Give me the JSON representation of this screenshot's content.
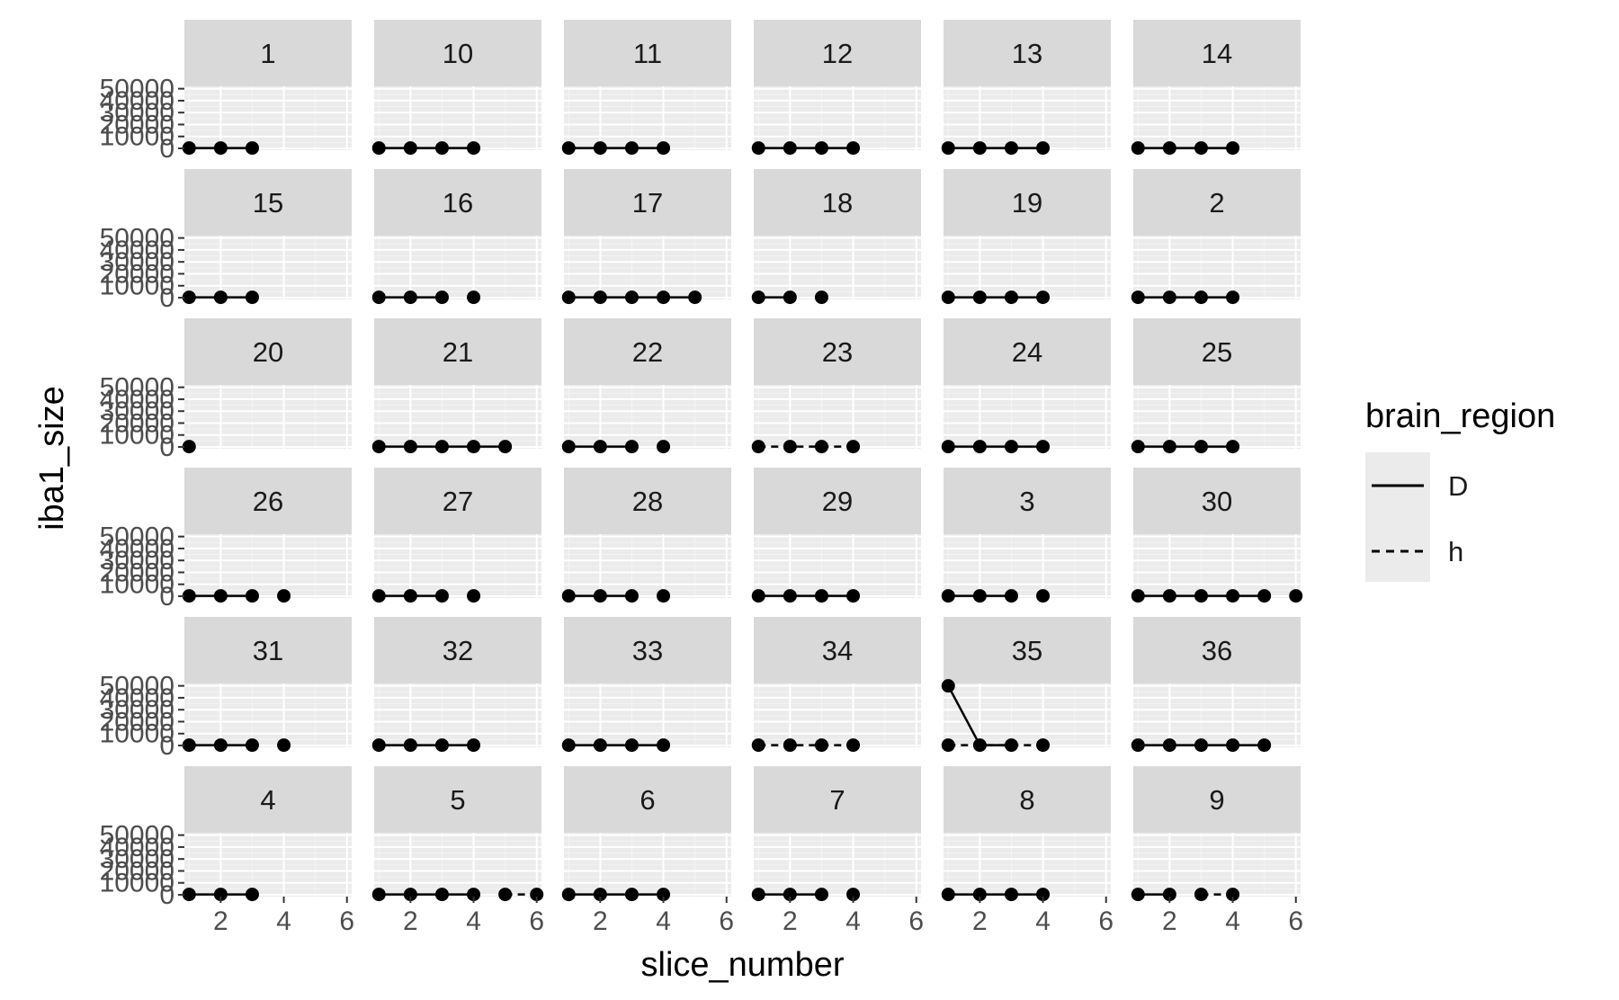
{
  "chart_data": {
    "type": "line",
    "facet_var": "animal",
    "xlabel": "slice_number",
    "ylabel": "iba1_size",
    "xlim": [
      0.85,
      6.15
    ],
    "ylim": [
      -1500,
      52000
    ],
    "x_ticks": [
      2,
      4,
      6
    ],
    "y_ticks": [
      0,
      10000,
      20000,
      30000,
      40000,
      50000
    ],
    "y_tick_labels": [
      "0",
      "10000",
      "20000",
      "30000",
      "40000",
      "50000"
    ],
    "legend": {
      "title": "brain_region",
      "position": "right",
      "entries": [
        {
          "label": "D",
          "linetype": "solid"
        },
        {
          "label": "h",
          "linetype": "dashed"
        }
      ]
    },
    "colors": {
      "panel_bg": "#ebebeb",
      "strip_bg": "#d9d9d9",
      "grid_major": "#ffffff",
      "data": "#000000"
    },
    "facets": [
      {
        "label": "1",
        "points": [
          {
            "x": 1,
            "y": 300,
            "region": "D"
          },
          {
            "x": 2,
            "y": 300,
            "region": "D"
          },
          {
            "x": 3,
            "y": 300,
            "region": "D"
          }
        ]
      },
      {
        "label": "10",
        "points": [
          {
            "x": 1,
            "y": 300,
            "region": "D"
          },
          {
            "x": 2,
            "y": 300,
            "region": "D"
          },
          {
            "x": 3,
            "y": 300,
            "region": "D"
          },
          {
            "x": 4,
            "y": 300,
            "region": "D"
          }
        ]
      },
      {
        "label": "11",
        "points": [
          {
            "x": 1,
            "y": 300,
            "region": "D"
          },
          {
            "x": 2,
            "y": 300,
            "region": "D"
          },
          {
            "x": 3,
            "y": 300,
            "region": "D"
          },
          {
            "x": 4,
            "y": 300,
            "region": "D"
          }
        ]
      },
      {
        "label": "12",
        "points": [
          {
            "x": 1,
            "y": 300,
            "region": "D"
          },
          {
            "x": 2,
            "y": 300,
            "region": "D"
          },
          {
            "x": 3,
            "y": 300,
            "region": "D"
          },
          {
            "x": 4,
            "y": 300,
            "region": "D"
          }
        ]
      },
      {
        "label": "13",
        "points": [
          {
            "x": 1,
            "y": 300,
            "region": "D"
          },
          {
            "x": 2,
            "y": 300,
            "region": "D"
          },
          {
            "x": 3,
            "y": 300,
            "region": "D"
          },
          {
            "x": 4,
            "y": 300,
            "region": "D"
          }
        ]
      },
      {
        "label": "14",
        "points": [
          {
            "x": 1,
            "y": 300,
            "region": "D"
          },
          {
            "x": 2,
            "y": 300,
            "region": "D"
          },
          {
            "x": 3,
            "y": 300,
            "region": "D"
          },
          {
            "x": 4,
            "y": 300,
            "region": "D"
          }
        ]
      },
      {
        "label": "15",
        "points": [
          {
            "x": 1,
            "y": 300,
            "region": "D"
          },
          {
            "x": 2,
            "y": 300,
            "region": "D"
          },
          {
            "x": 3,
            "y": 300,
            "region": "D"
          }
        ]
      },
      {
        "label": "16",
        "points": [
          {
            "x": 1,
            "y": 300,
            "region": "D"
          },
          {
            "x": 2,
            "y": 300,
            "region": "D"
          },
          {
            "x": 3,
            "y": 300,
            "region": "D"
          },
          {
            "x": 4,
            "y": 300,
            "region": "h"
          }
        ]
      },
      {
        "label": "17",
        "points": [
          {
            "x": 1,
            "y": 300,
            "region": "D"
          },
          {
            "x": 2,
            "y": 300,
            "region": "D"
          },
          {
            "x": 3,
            "y": 300,
            "region": "D"
          },
          {
            "x": 4,
            "y": 300,
            "region": "D"
          },
          {
            "x": 5,
            "y": 300,
            "region": "D"
          }
        ]
      },
      {
        "label": "18",
        "points": [
          {
            "x": 1,
            "y": 300,
            "region": "D"
          },
          {
            "x": 2,
            "y": 300,
            "region": "D"
          },
          {
            "x": 3,
            "y": 300,
            "region": "h"
          }
        ]
      },
      {
        "label": "19",
        "points": [
          {
            "x": 1,
            "y": 300,
            "region": "D"
          },
          {
            "x": 2,
            "y": 300,
            "region": "D"
          },
          {
            "x": 3,
            "y": 300,
            "region": "D"
          },
          {
            "x": 4,
            "y": 300,
            "region": "D"
          }
        ]
      },
      {
        "label": "2",
        "points": [
          {
            "x": 1,
            "y": 300,
            "region": "D"
          },
          {
            "x": 2,
            "y": 300,
            "region": "D"
          },
          {
            "x": 3,
            "y": 300,
            "region": "D"
          },
          {
            "x": 4,
            "y": 300,
            "region": "D"
          }
        ]
      },
      {
        "label": "20",
        "points": [
          {
            "x": 1,
            "y": 300,
            "region": "D"
          }
        ]
      },
      {
        "label": "21",
        "points": [
          {
            "x": 1,
            "y": 300,
            "region": "D"
          },
          {
            "x": 2,
            "y": 300,
            "region": "D"
          },
          {
            "x": 3,
            "y": 300,
            "region": "D"
          },
          {
            "x": 4,
            "y": 300,
            "region": "D"
          },
          {
            "x": 5,
            "y": 300,
            "region": "D"
          }
        ]
      },
      {
        "label": "22",
        "points": [
          {
            "x": 1,
            "y": 300,
            "region": "D"
          },
          {
            "x": 2,
            "y": 300,
            "region": "D"
          },
          {
            "x": 3,
            "y": 300,
            "region": "D"
          },
          {
            "x": 4,
            "y": 300,
            "region": "h"
          }
        ]
      },
      {
        "label": "23",
        "points": [
          {
            "x": 1,
            "y": 300,
            "region": "h"
          },
          {
            "x": 2,
            "y": 300,
            "region": "h"
          },
          {
            "x": 3,
            "y": 300,
            "region": "h"
          },
          {
            "x": 4,
            "y": 300,
            "region": "h"
          }
        ]
      },
      {
        "label": "24",
        "points": [
          {
            "x": 1,
            "y": 300,
            "region": "D"
          },
          {
            "x": 2,
            "y": 300,
            "region": "D"
          },
          {
            "x": 3,
            "y": 300,
            "region": "D"
          },
          {
            "x": 4,
            "y": 300,
            "region": "D"
          }
        ]
      },
      {
        "label": "25",
        "points": [
          {
            "x": 1,
            "y": 300,
            "region": "D"
          },
          {
            "x": 2,
            "y": 300,
            "region": "D"
          },
          {
            "x": 3,
            "y": 300,
            "region": "D"
          },
          {
            "x": 4,
            "y": 300,
            "region": "D"
          }
        ]
      },
      {
        "label": "26",
        "points": [
          {
            "x": 1,
            "y": 300,
            "region": "D"
          },
          {
            "x": 2,
            "y": 300,
            "region": "D"
          },
          {
            "x": 3,
            "y": 300,
            "region": "D"
          },
          {
            "x": 4,
            "y": 300,
            "region": "h"
          }
        ]
      },
      {
        "label": "27",
        "points": [
          {
            "x": 1,
            "y": 300,
            "region": "D"
          },
          {
            "x": 2,
            "y": 300,
            "region": "D"
          },
          {
            "x": 3,
            "y": 300,
            "region": "D"
          },
          {
            "x": 4,
            "y": 300,
            "region": "h"
          }
        ]
      },
      {
        "label": "28",
        "points": [
          {
            "x": 1,
            "y": 300,
            "region": "D"
          },
          {
            "x": 2,
            "y": 300,
            "region": "D"
          },
          {
            "x": 3,
            "y": 300,
            "region": "D"
          },
          {
            "x": 4,
            "y": 300,
            "region": "h"
          }
        ]
      },
      {
        "label": "29",
        "points": [
          {
            "x": 1,
            "y": 300,
            "region": "D"
          },
          {
            "x": 2,
            "y": 300,
            "region": "D"
          },
          {
            "x": 3,
            "y": 300,
            "region": "D"
          },
          {
            "x": 4,
            "y": 300,
            "region": "D"
          }
        ]
      },
      {
        "label": "3",
        "points": [
          {
            "x": 1,
            "y": 300,
            "region": "D"
          },
          {
            "x": 2,
            "y": 300,
            "region": "D"
          },
          {
            "x": 3,
            "y": 300,
            "region": "D"
          },
          {
            "x": 4,
            "y": 300,
            "region": "h"
          }
        ]
      },
      {
        "label": "30",
        "points": [
          {
            "x": 1,
            "y": 300,
            "region": "D"
          },
          {
            "x": 2,
            "y": 300,
            "region": "D"
          },
          {
            "x": 3,
            "y": 300,
            "region": "D"
          },
          {
            "x": 4,
            "y": 300,
            "region": "D"
          },
          {
            "x": 5,
            "y": 300,
            "region": "D"
          },
          {
            "x": 6,
            "y": 300,
            "region": "h"
          }
        ]
      },
      {
        "label": "31",
        "points": [
          {
            "x": 1,
            "y": 300,
            "region": "D"
          },
          {
            "x": 2,
            "y": 300,
            "region": "D"
          },
          {
            "x": 3,
            "y": 300,
            "region": "D"
          },
          {
            "x": 4,
            "y": 300,
            "region": "h"
          }
        ]
      },
      {
        "label": "32",
        "points": [
          {
            "x": 1,
            "y": 300,
            "region": "D"
          },
          {
            "x": 2,
            "y": 300,
            "region": "D"
          },
          {
            "x": 3,
            "y": 300,
            "region": "D"
          },
          {
            "x": 4,
            "y": 300,
            "region": "D"
          }
        ]
      },
      {
        "label": "33",
        "points": [
          {
            "x": 1,
            "y": 300,
            "region": "D"
          },
          {
            "x": 2,
            "y": 300,
            "region": "D"
          },
          {
            "x": 3,
            "y": 300,
            "region": "D"
          },
          {
            "x": 4,
            "y": 300,
            "region": "D"
          }
        ]
      },
      {
        "label": "34",
        "points": [
          {
            "x": 1,
            "y": 300,
            "region": "h"
          },
          {
            "x": 2,
            "y": 300,
            "region": "h"
          },
          {
            "x": 3,
            "y": 300,
            "region": "h"
          },
          {
            "x": 4,
            "y": 300,
            "region": "h"
          }
        ]
      },
      {
        "label": "35",
        "points": [
          {
            "x": 1,
            "y": 50000,
            "region": "D"
          },
          {
            "x": 2,
            "y": 300,
            "region": "D"
          },
          {
            "x": 3,
            "y": 300,
            "region": "D"
          },
          {
            "x": 4,
            "y": 300,
            "region": "h"
          },
          {
            "x": 1,
            "y": 300,
            "region": "h"
          }
        ]
      },
      {
        "label": "36",
        "points": [
          {
            "x": 1,
            "y": 300,
            "region": "D"
          },
          {
            "x": 2,
            "y": 300,
            "region": "D"
          },
          {
            "x": 3,
            "y": 300,
            "region": "D"
          },
          {
            "x": 4,
            "y": 300,
            "region": "D"
          },
          {
            "x": 5,
            "y": 300,
            "region": "D"
          }
        ]
      },
      {
        "label": "4",
        "points": [
          {
            "x": 1,
            "y": 300,
            "region": "D"
          },
          {
            "x": 2,
            "y": 300,
            "region": "D"
          },
          {
            "x": 3,
            "y": 300,
            "region": "D"
          }
        ]
      },
      {
        "label": "5",
        "points": [
          {
            "x": 1,
            "y": 300,
            "region": "D"
          },
          {
            "x": 2,
            "y": 300,
            "region": "D"
          },
          {
            "x": 3,
            "y": 300,
            "region": "D"
          },
          {
            "x": 4,
            "y": 300,
            "region": "D"
          },
          {
            "x": 5,
            "y": 300,
            "region": "h"
          },
          {
            "x": 6,
            "y": 300,
            "region": "h"
          }
        ]
      },
      {
        "label": "6",
        "points": [
          {
            "x": 1,
            "y": 300,
            "region": "D"
          },
          {
            "x": 2,
            "y": 300,
            "region": "D"
          },
          {
            "x": 3,
            "y": 300,
            "region": "D"
          },
          {
            "x": 4,
            "y": 300,
            "region": "D"
          }
        ]
      },
      {
        "label": "7",
        "points": [
          {
            "x": 1,
            "y": 300,
            "region": "D"
          },
          {
            "x": 2,
            "y": 300,
            "region": "D"
          },
          {
            "x": 3,
            "y": 300,
            "region": "D"
          },
          {
            "x": 4,
            "y": 300,
            "region": "h"
          }
        ]
      },
      {
        "label": "8",
        "points": [
          {
            "x": 1,
            "y": 300,
            "region": "D"
          },
          {
            "x": 2,
            "y": 300,
            "region": "D"
          },
          {
            "x": 3,
            "y": 300,
            "region": "D"
          },
          {
            "x": 4,
            "y": 300,
            "region": "D"
          }
        ]
      },
      {
        "label": "9",
        "points": [
          {
            "x": 1,
            "y": 300,
            "region": "D"
          },
          {
            "x": 2,
            "y": 300,
            "region": "D"
          },
          {
            "x": 3,
            "y": 300,
            "region": "h"
          },
          {
            "x": 4,
            "y": 300,
            "region": "h"
          }
        ]
      }
    ]
  }
}
